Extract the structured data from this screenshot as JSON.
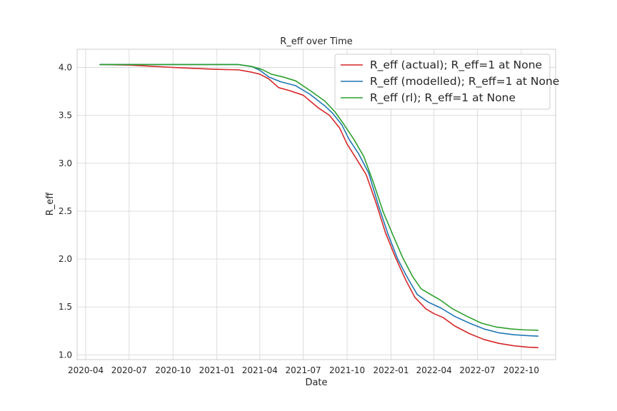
{
  "chart_data": {
    "type": "line",
    "title": "R_eff over Time",
    "xlabel": "Date",
    "ylabel": "R_eff",
    "x_axis_type": "date",
    "xlim": [
      "2020-03-14",
      "2022-12-12"
    ],
    "ylim": [
      0.95,
      4.19
    ],
    "x_ticks": [
      {
        "date": "2020-04-01",
        "label": "2020-04"
      },
      {
        "date": "2020-07-01",
        "label": "2020-07"
      },
      {
        "date": "2020-10-01",
        "label": "2020-10"
      },
      {
        "date": "2021-01-01",
        "label": "2021-01"
      },
      {
        "date": "2021-04-01",
        "label": "2021-04"
      },
      {
        "date": "2021-07-01",
        "label": "2021-07"
      },
      {
        "date": "2021-10-01",
        "label": "2021-10"
      },
      {
        "date": "2022-01-01",
        "label": "2022-01"
      },
      {
        "date": "2022-04-01",
        "label": "2022-04"
      },
      {
        "date": "2022-07-01",
        "label": "2022-07"
      },
      {
        "date": "2022-10-01",
        "label": "2022-10"
      }
    ],
    "y_ticks": [
      {
        "value": 1.0,
        "label": "1.0"
      },
      {
        "value": 1.5,
        "label": "1.5"
      },
      {
        "value": 2.0,
        "label": "2.0"
      },
      {
        "value": 2.5,
        "label": "2.5"
      },
      {
        "value": 3.0,
        "label": "3.0"
      },
      {
        "value": 3.5,
        "label": "3.5"
      },
      {
        "value": 4.0,
        "label": "4.0"
      }
    ],
    "grid": true,
    "legend_position": "top-right",
    "series": [
      {
        "name": "R_eff (actual); R_eff=1 at None",
        "color": "#d62728",
        "points": [
          [
            "2020-05-01",
            4.03
          ],
          [
            "2020-07-01",
            4.025
          ],
          [
            "2020-10-01",
            4.0
          ],
          [
            "2021-01-01",
            3.98
          ],
          [
            "2021-02-15",
            3.975
          ],
          [
            "2021-03-15",
            3.95
          ],
          [
            "2021-04-01",
            3.93
          ],
          [
            "2021-04-20",
            3.88
          ],
          [
            "2021-05-10",
            3.79
          ],
          [
            "2021-06-01",
            3.76
          ],
          [
            "2021-07-01",
            3.71
          ],
          [
            "2021-08-01",
            3.58
          ],
          [
            "2021-08-25",
            3.5
          ],
          [
            "2021-09-15",
            3.37
          ],
          [
            "2021-10-01",
            3.2
          ],
          [
            "2021-10-20",
            3.05
          ],
          [
            "2021-11-10",
            2.88
          ],
          [
            "2021-12-01",
            2.58
          ],
          [
            "2021-12-20",
            2.28
          ],
          [
            "2022-01-10",
            2.02
          ],
          [
            "2022-02-01",
            1.78
          ],
          [
            "2022-02-20",
            1.6
          ],
          [
            "2022-03-15",
            1.48
          ],
          [
            "2022-04-01",
            1.43
          ],
          [
            "2022-04-20",
            1.39
          ],
          [
            "2022-05-15",
            1.3
          ],
          [
            "2022-06-15",
            1.22
          ],
          [
            "2022-07-15",
            1.16
          ],
          [
            "2022-08-15",
            1.12
          ],
          [
            "2022-09-15",
            1.095
          ],
          [
            "2022-10-15",
            1.08
          ],
          [
            "2022-11-05",
            1.075
          ]
        ]
      },
      {
        "name": "R_eff (modelled); R_eff=1 at None",
        "color": "#1f77b4",
        "points": [
          [
            "2020-05-01",
            4.03
          ],
          [
            "2020-07-01",
            4.03
          ],
          [
            "2020-10-01",
            4.03
          ],
          [
            "2021-01-01",
            4.03
          ],
          [
            "2021-02-15",
            4.03
          ],
          [
            "2021-03-15",
            4.01
          ],
          [
            "2021-04-01",
            3.97
          ],
          [
            "2021-04-20",
            3.9
          ],
          [
            "2021-05-15",
            3.85
          ],
          [
            "2021-06-15",
            3.81
          ],
          [
            "2021-07-15",
            3.72
          ],
          [
            "2021-08-15",
            3.6
          ],
          [
            "2021-09-01",
            3.52
          ],
          [
            "2021-09-20",
            3.4
          ],
          [
            "2021-10-05",
            3.25
          ],
          [
            "2021-10-25",
            3.1
          ],
          [
            "2021-11-15",
            2.9
          ],
          [
            "2021-12-05",
            2.57
          ],
          [
            "2021-12-25",
            2.27
          ],
          [
            "2022-01-15",
            2.0
          ],
          [
            "2022-02-05",
            1.8
          ],
          [
            "2022-02-25",
            1.63
          ],
          [
            "2022-03-20",
            1.55
          ],
          [
            "2022-04-15",
            1.49
          ],
          [
            "2022-05-15",
            1.4
          ],
          [
            "2022-06-15",
            1.33
          ],
          [
            "2022-07-15",
            1.27
          ],
          [
            "2022-08-15",
            1.23
          ],
          [
            "2022-09-15",
            1.21
          ],
          [
            "2022-10-15",
            1.2
          ],
          [
            "2022-11-05",
            1.195
          ]
        ]
      },
      {
        "name": "R_eff (rl); R_eff=1 at None",
        "color": "#2ca02c",
        "points": [
          [
            "2020-05-01",
            4.03
          ],
          [
            "2020-07-01",
            4.03
          ],
          [
            "2020-10-01",
            4.03
          ],
          [
            "2021-01-01",
            4.03
          ],
          [
            "2021-02-15",
            4.03
          ],
          [
            "2021-03-15",
            4.01
          ],
          [
            "2021-04-05",
            3.98
          ],
          [
            "2021-04-25",
            3.93
          ],
          [
            "2021-05-20",
            3.9
          ],
          [
            "2021-06-15",
            3.86
          ],
          [
            "2021-07-15",
            3.76
          ],
          [
            "2021-08-15",
            3.65
          ],
          [
            "2021-09-05",
            3.54
          ],
          [
            "2021-09-25",
            3.4
          ],
          [
            "2021-10-15",
            3.25
          ],
          [
            "2021-11-05",
            3.07
          ],
          [
            "2021-11-25",
            2.8
          ],
          [
            "2021-12-15",
            2.5
          ],
          [
            "2022-01-05",
            2.25
          ],
          [
            "2022-01-25",
            2.02
          ],
          [
            "2022-02-15",
            1.82
          ],
          [
            "2022-03-05",
            1.69
          ],
          [
            "2022-03-25",
            1.63
          ],
          [
            "2022-04-15",
            1.57
          ],
          [
            "2022-05-10",
            1.48
          ],
          [
            "2022-06-10",
            1.4
          ],
          [
            "2022-07-10",
            1.33
          ],
          [
            "2022-08-10",
            1.29
          ],
          [
            "2022-09-10",
            1.27
          ],
          [
            "2022-10-10",
            1.26
          ],
          [
            "2022-11-05",
            1.257
          ]
        ]
      }
    ]
  }
}
